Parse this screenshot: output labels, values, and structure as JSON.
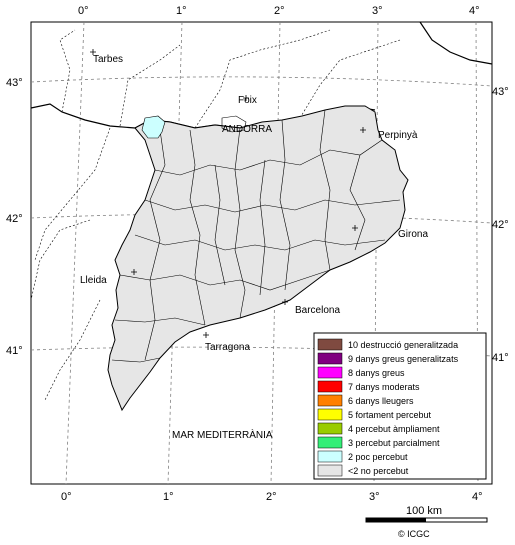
{
  "axes": {
    "top": [
      "0°",
      "1°",
      "2°",
      "3°",
      "4°"
    ],
    "bottom": [
      "0°",
      "1°",
      "2°",
      "3°",
      "4°"
    ],
    "left": [
      "43°",
      "42°",
      "41°"
    ],
    "right": [
      "43°",
      "42°",
      "41°"
    ]
  },
  "places": {
    "tarbes": "Tarbes",
    "foix": "Foix",
    "andorra": "ANDORRA",
    "perpinya": "Perpinyà",
    "girona": "Girona",
    "lleida": "Lleida",
    "barcelona": "Barcelona",
    "tarragona": "Tarragona",
    "sea": "MAR MEDITERRÀNIA"
  },
  "legend": [
    {
      "label": "10 destrucció generalitzada",
      "color": "#7f4a40"
    },
    {
      "label": "9 danys greus generalitzats",
      "color": "#800080"
    },
    {
      "label": "8 danys greus",
      "color": "#ff00ff"
    },
    {
      "label": "7 danys moderats",
      "color": "#ff0000"
    },
    {
      "label": "6 danys lleugers",
      "color": "#ff8000"
    },
    {
      "label": "5 fortament percebut",
      "color": "#ffff00"
    },
    {
      "label": "4 percebut àmpliament",
      "color": "#99cc00"
    },
    {
      "label": "3 percebut parcialment",
      "color": "#33ee77"
    },
    {
      "label": "2 poc percebut",
      "color": "#ccffff"
    },
    {
      "label": "<2 no percebut",
      "color": "#e6e6e6"
    }
  ],
  "scale": {
    "label": "100 km"
  },
  "credit": "© ICGC"
}
